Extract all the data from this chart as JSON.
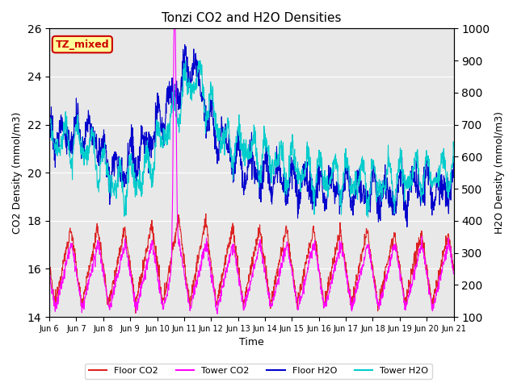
{
  "title": "Tonzi CO2 and H2O Densities",
  "xlabel": "Time",
  "ylabel_left": "CO2 Density (mmol/m3)",
  "ylabel_right": "H2O Density (mmol/m3)",
  "ylim_left": [
    14,
    26
  ],
  "ylim_right": [
    100,
    1000
  ],
  "yticks_left": [
    14,
    16,
    18,
    20,
    22,
    24,
    26
  ],
  "yticks_right": [
    100,
    200,
    300,
    400,
    500,
    600,
    700,
    800,
    900,
    1000
  ],
  "xtick_labels": [
    "Jun 6",
    "Jun 7",
    "Jun 8",
    "Jun 9",
    "Jun 10",
    "Jun 11",
    "Jun 12",
    "Jun 13",
    "Jun 14",
    "Jun 15",
    "Jun 16",
    "Jun 17",
    "Jun 18",
    "Jun 19",
    "Jun 20",
    "Jun 21"
  ],
  "annotation_text": "TZ_mixed",
  "annotation_color": "#cc0000",
  "annotation_bg": "#ffff99",
  "colors": {
    "floor_co2": "#dd2222",
    "tower_co2": "#ff00ff",
    "floor_h2o": "#0000cc",
    "tower_h2o": "#00cccc"
  },
  "legend_labels": [
    "Floor CO2",
    "Tower CO2",
    "Floor H2O",
    "Tower H2O"
  ],
  "bg_color": "#e8e8e8",
  "fig_bg": "#ffffff",
  "line_width": 0.8
}
